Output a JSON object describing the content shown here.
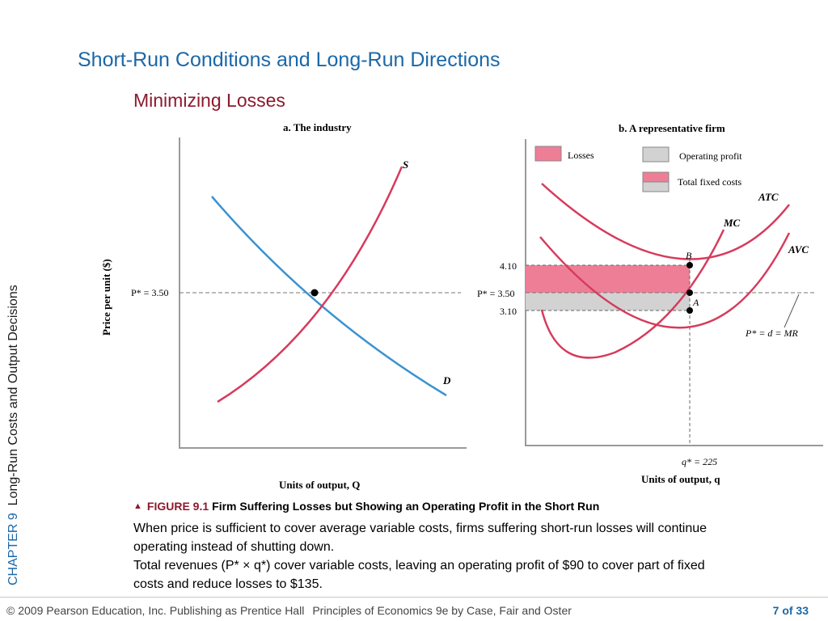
{
  "slide": {
    "title": "Short-Run Conditions and Long-Run Directions",
    "subtitle": "Minimizing Losses",
    "chapter_label": "CHAPTER 9",
    "chapter_title": "Long-Run Costs and Output Decisions"
  },
  "caption": {
    "figure_number": "FIGURE 9.1",
    "figure_title": "Firm Suffering Losses but Showing an Operating Profit in the Short Run",
    "paragraph1": "When price is sufficient to cover average variable costs, firms suffering short-run losses will continue operating instead of shutting down.",
    "paragraph2": "Total revenues (P* × q*) cover variable costs, leaving an operating profit of $90 to cover part of fixed costs and reduce losses to $135."
  },
  "footer": {
    "copyright": "© 2009 Pearson Education, Inc. Publishing as Prentice Hall",
    "book": "Principles of Economics 9e by Case, Fair and Oster",
    "page": "7 of 33"
  },
  "colors": {
    "curve_red": "#d63b5c",
    "curve_blue": "#3a93cf",
    "losses_fill": "#ee7e96",
    "operating_fill": "#d2d2d2",
    "title_blue": "#1a68a8",
    "subtitle_red": "#8b1a2e"
  },
  "chart_data": [
    {
      "type": "line",
      "title": "a. The industry",
      "xlabel": "Units of output, Q",
      "ylabel": "Price per unit ($)",
      "series": [
        {
          "name": "S",
          "color": "#d63b5c"
        },
        {
          "name": "D",
          "color": "#3a93cf"
        }
      ],
      "equilibrium": {
        "label": "P* = 3.50",
        "price": 3.5
      }
    },
    {
      "type": "line",
      "title": "b. A representative firm",
      "xlabel": "Units of output, q",
      "legend": [
        "Losses",
        "Operating profit",
        "Total fixed costs"
      ],
      "series": [
        {
          "name": "ATC",
          "color": "#d63b5c"
        },
        {
          "name": "MC",
          "color": "#d63b5c"
        },
        {
          "name": "AVC",
          "color": "#d63b5c"
        }
      ],
      "price_labels": [
        "4.10",
        "P* = 3.50",
        "3.10"
      ],
      "prices": [
        4.1,
        3.5,
        3.1
      ],
      "points": [
        {
          "label": "B",
          "y": 4.1
        },
        {
          "label": "A",
          "y": 3.1
        }
      ],
      "demand_label": "P* = d = MR",
      "q_label": "q* = 225",
      "q_star": 225
    }
  ]
}
